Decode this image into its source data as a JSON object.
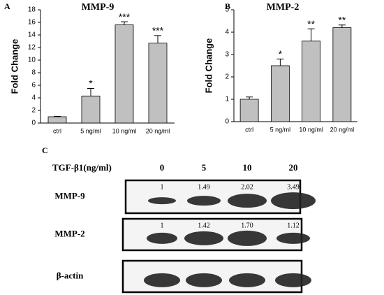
{
  "chart_data": [
    {
      "type": "bar",
      "panel": "A",
      "title": "MMP-9",
      "y_label": "Fold Change",
      "categories": [
        "ctrl",
        "5 ng/ml",
        "10 ng/ml",
        "20 ng/ml"
      ],
      "values": [
        1.0,
        4.3,
        15.6,
        12.7
      ],
      "errors": [
        0.05,
        1.2,
        0.5,
        1.2
      ],
      "annotations": [
        null,
        "*",
        "***",
        "***"
      ],
      "color": "#c0c0c0",
      "ylim": [
        0,
        18
      ],
      "yticks": [
        0,
        2,
        4,
        6,
        8,
        10,
        12,
        14,
        16,
        18
      ]
    },
    {
      "type": "bar",
      "panel": "B",
      "title": "MMP-2",
      "y_label": "Fold Change",
      "categories": [
        "ctrl",
        "5 ng/ml",
        "10 ng/ml",
        "20 ng/ml"
      ],
      "values": [
        1.0,
        2.5,
        3.6,
        4.2
      ],
      "errors": [
        0.1,
        0.3,
        0.55,
        0.12
      ],
      "annotations": [
        null,
        "*",
        "**",
        "**"
      ],
      "color": "#c0c0c0",
      "ylim": [
        0,
        5
      ],
      "yticks": [
        0,
        1,
        2,
        3,
        4,
        5
      ]
    }
  ],
  "blot": {
    "panel": "C",
    "treatment": "TGF-β1(ng/ml)",
    "doses": [
      "0",
      "5",
      "10",
      "20"
    ],
    "rows": [
      {
        "name": "MMP-9",
        "ratios": [
          "1",
          "1.49",
          "2.02",
          "3.49"
        ]
      },
      {
        "name": "MMP-2",
        "ratios": [
          "1",
          "1.42",
          "1.70",
          "1.12"
        ]
      },
      {
        "name": "β-actin"
      }
    ]
  }
}
